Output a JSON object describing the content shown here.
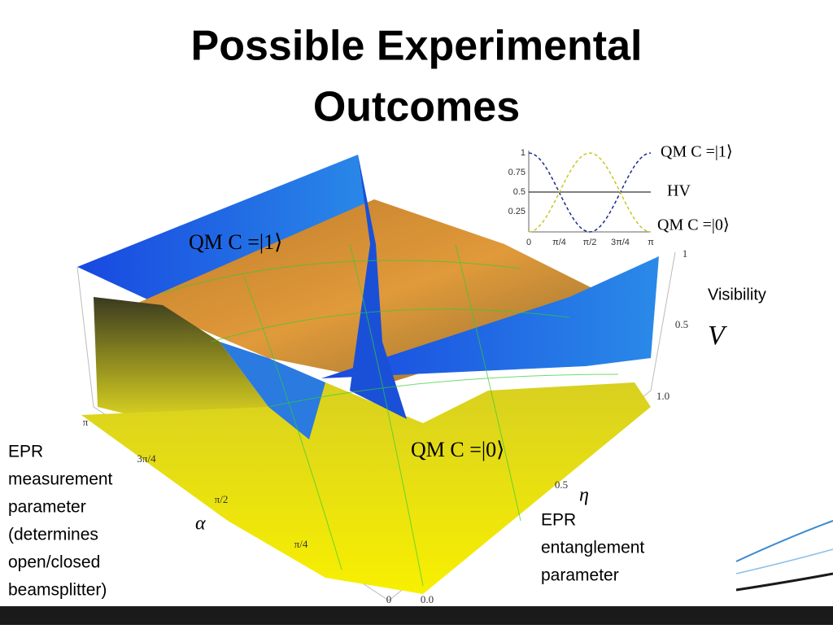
{
  "title": [
    "Possible Experimental",
    "Outcomes"
  ],
  "surface_labels": {
    "upper": "QM C =|1⟩",
    "lower": "QM C =|0⟩"
  },
  "inset": {
    "yticks": [
      "1",
      "0.75",
      "0.5",
      "0.25"
    ],
    "xticks": [
      "0",
      "π/4",
      "π/2",
      "3π/4",
      "π"
    ],
    "legend": [
      "QM C =|1⟩",
      "HV",
      "QM C =|0⟩"
    ]
  },
  "axes": {
    "alpha_ticks": [
      "π",
      "3π/4",
      "π/2",
      "π/4",
      "0"
    ],
    "alpha_label": "α",
    "visibility_ticks": [
      "1",
      "0.5"
    ],
    "visibility_label": "Visibility",
    "visibility_symbol": "V",
    "eta_ticks": [
      "1.0",
      "0.5",
      "0.0"
    ],
    "eta_label": "η"
  },
  "annotations": {
    "measurement": [
      "EPR",
      "measurement",
      "parameter",
      "(determines",
      "open/closed",
      "beamsplitter)"
    ],
    "entanglement": [
      "EPR",
      "entanglement",
      "parameter"
    ]
  }
}
